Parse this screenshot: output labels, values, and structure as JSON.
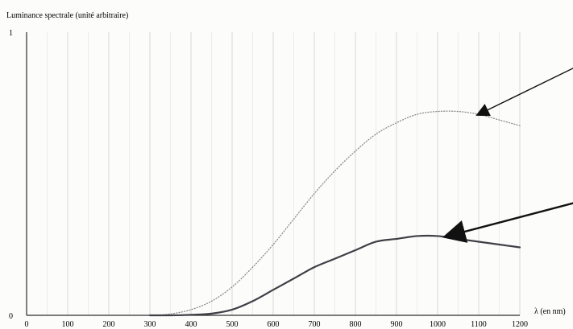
{
  "chart_data": {
    "type": "line",
    "ylabel": "Luminance spectrale (unité arbitraire)",
    "xlabel": "λ (en nm)",
    "xlim": [
      0,
      1200
    ],
    "ylim": [
      0,
      1
    ],
    "x_ticks": [
      0,
      100,
      200,
      300,
      400,
      500,
      600,
      700,
      800,
      900,
      1000,
      1100,
      1200
    ],
    "y_ticks": [
      0,
      1
    ],
    "grid": "vertical",
    "series": [
      {
        "style": "dotted",
        "color": "#8a8a8a",
        "x": [
          300,
          350,
          400,
          450,
          500,
          550,
          600,
          650,
          700,
          750,
          800,
          850,
          900,
          950,
          1000,
          1050,
          1100,
          1150,
          1200
        ],
        "y": [
          0.0,
          0.005,
          0.02,
          0.05,
          0.1,
          0.17,
          0.25,
          0.34,
          0.43,
          0.51,
          0.58,
          0.64,
          0.68,
          0.71,
          0.72,
          0.72,
          0.71,
          0.69,
          0.67
        ]
      },
      {
        "style": "solid",
        "color": "#3f3f46",
        "x": [
          300,
          350,
          400,
          450,
          500,
          550,
          600,
          650,
          700,
          750,
          800,
          850,
          900,
          950,
          1000,
          1050,
          1100,
          1150,
          1200
        ],
        "y": [
          0.0,
          0.0,
          0.002,
          0.006,
          0.02,
          0.05,
          0.09,
          0.13,
          0.17,
          0.2,
          0.23,
          0.26,
          0.27,
          0.28,
          0.28,
          0.27,
          0.26,
          0.25,
          0.24
        ]
      }
    ],
    "annotations": [
      {
        "type": "arrow",
        "target_series": 0,
        "target": [
          1100,
          0.71
        ],
        "from": [
          1340,
          0.88
        ]
      },
      {
        "type": "arrow",
        "target_series": 1,
        "target": [
          1025,
          0.28
        ],
        "from": [
          1340,
          0.4
        ]
      }
    ]
  }
}
